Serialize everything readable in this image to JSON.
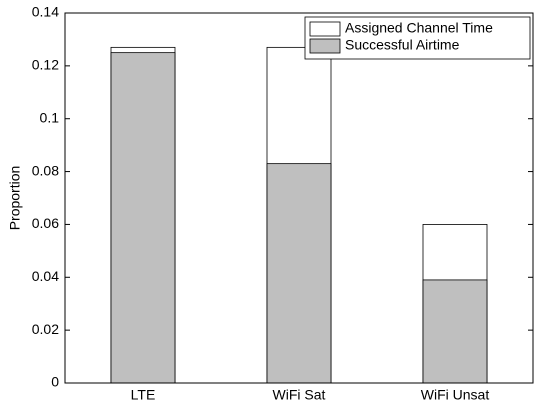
{
  "chart_data": {
    "type": "bar",
    "overlay": true,
    "y_label": "Proportion",
    "categories": [
      "LTE",
      "WiFi Sat",
      "WiFi Unsat"
    ],
    "series": [
      {
        "name": "Assigned Channel Time",
        "color": "#ffffff",
        "values": [
          0.127,
          0.127,
          0.06
        ]
      },
      {
        "name": "Successful Airtime",
        "color": "#bfbfbf",
        "values": [
          0.125,
          0.083,
          0.039
        ]
      }
    ],
    "ylim": [
      0,
      0.14
    ],
    "yticks": [
      0,
      0.02,
      0.04,
      0.06,
      0.08,
      0.1,
      0.12,
      0.14
    ],
    "grid": false,
    "legend": "top-right"
  }
}
